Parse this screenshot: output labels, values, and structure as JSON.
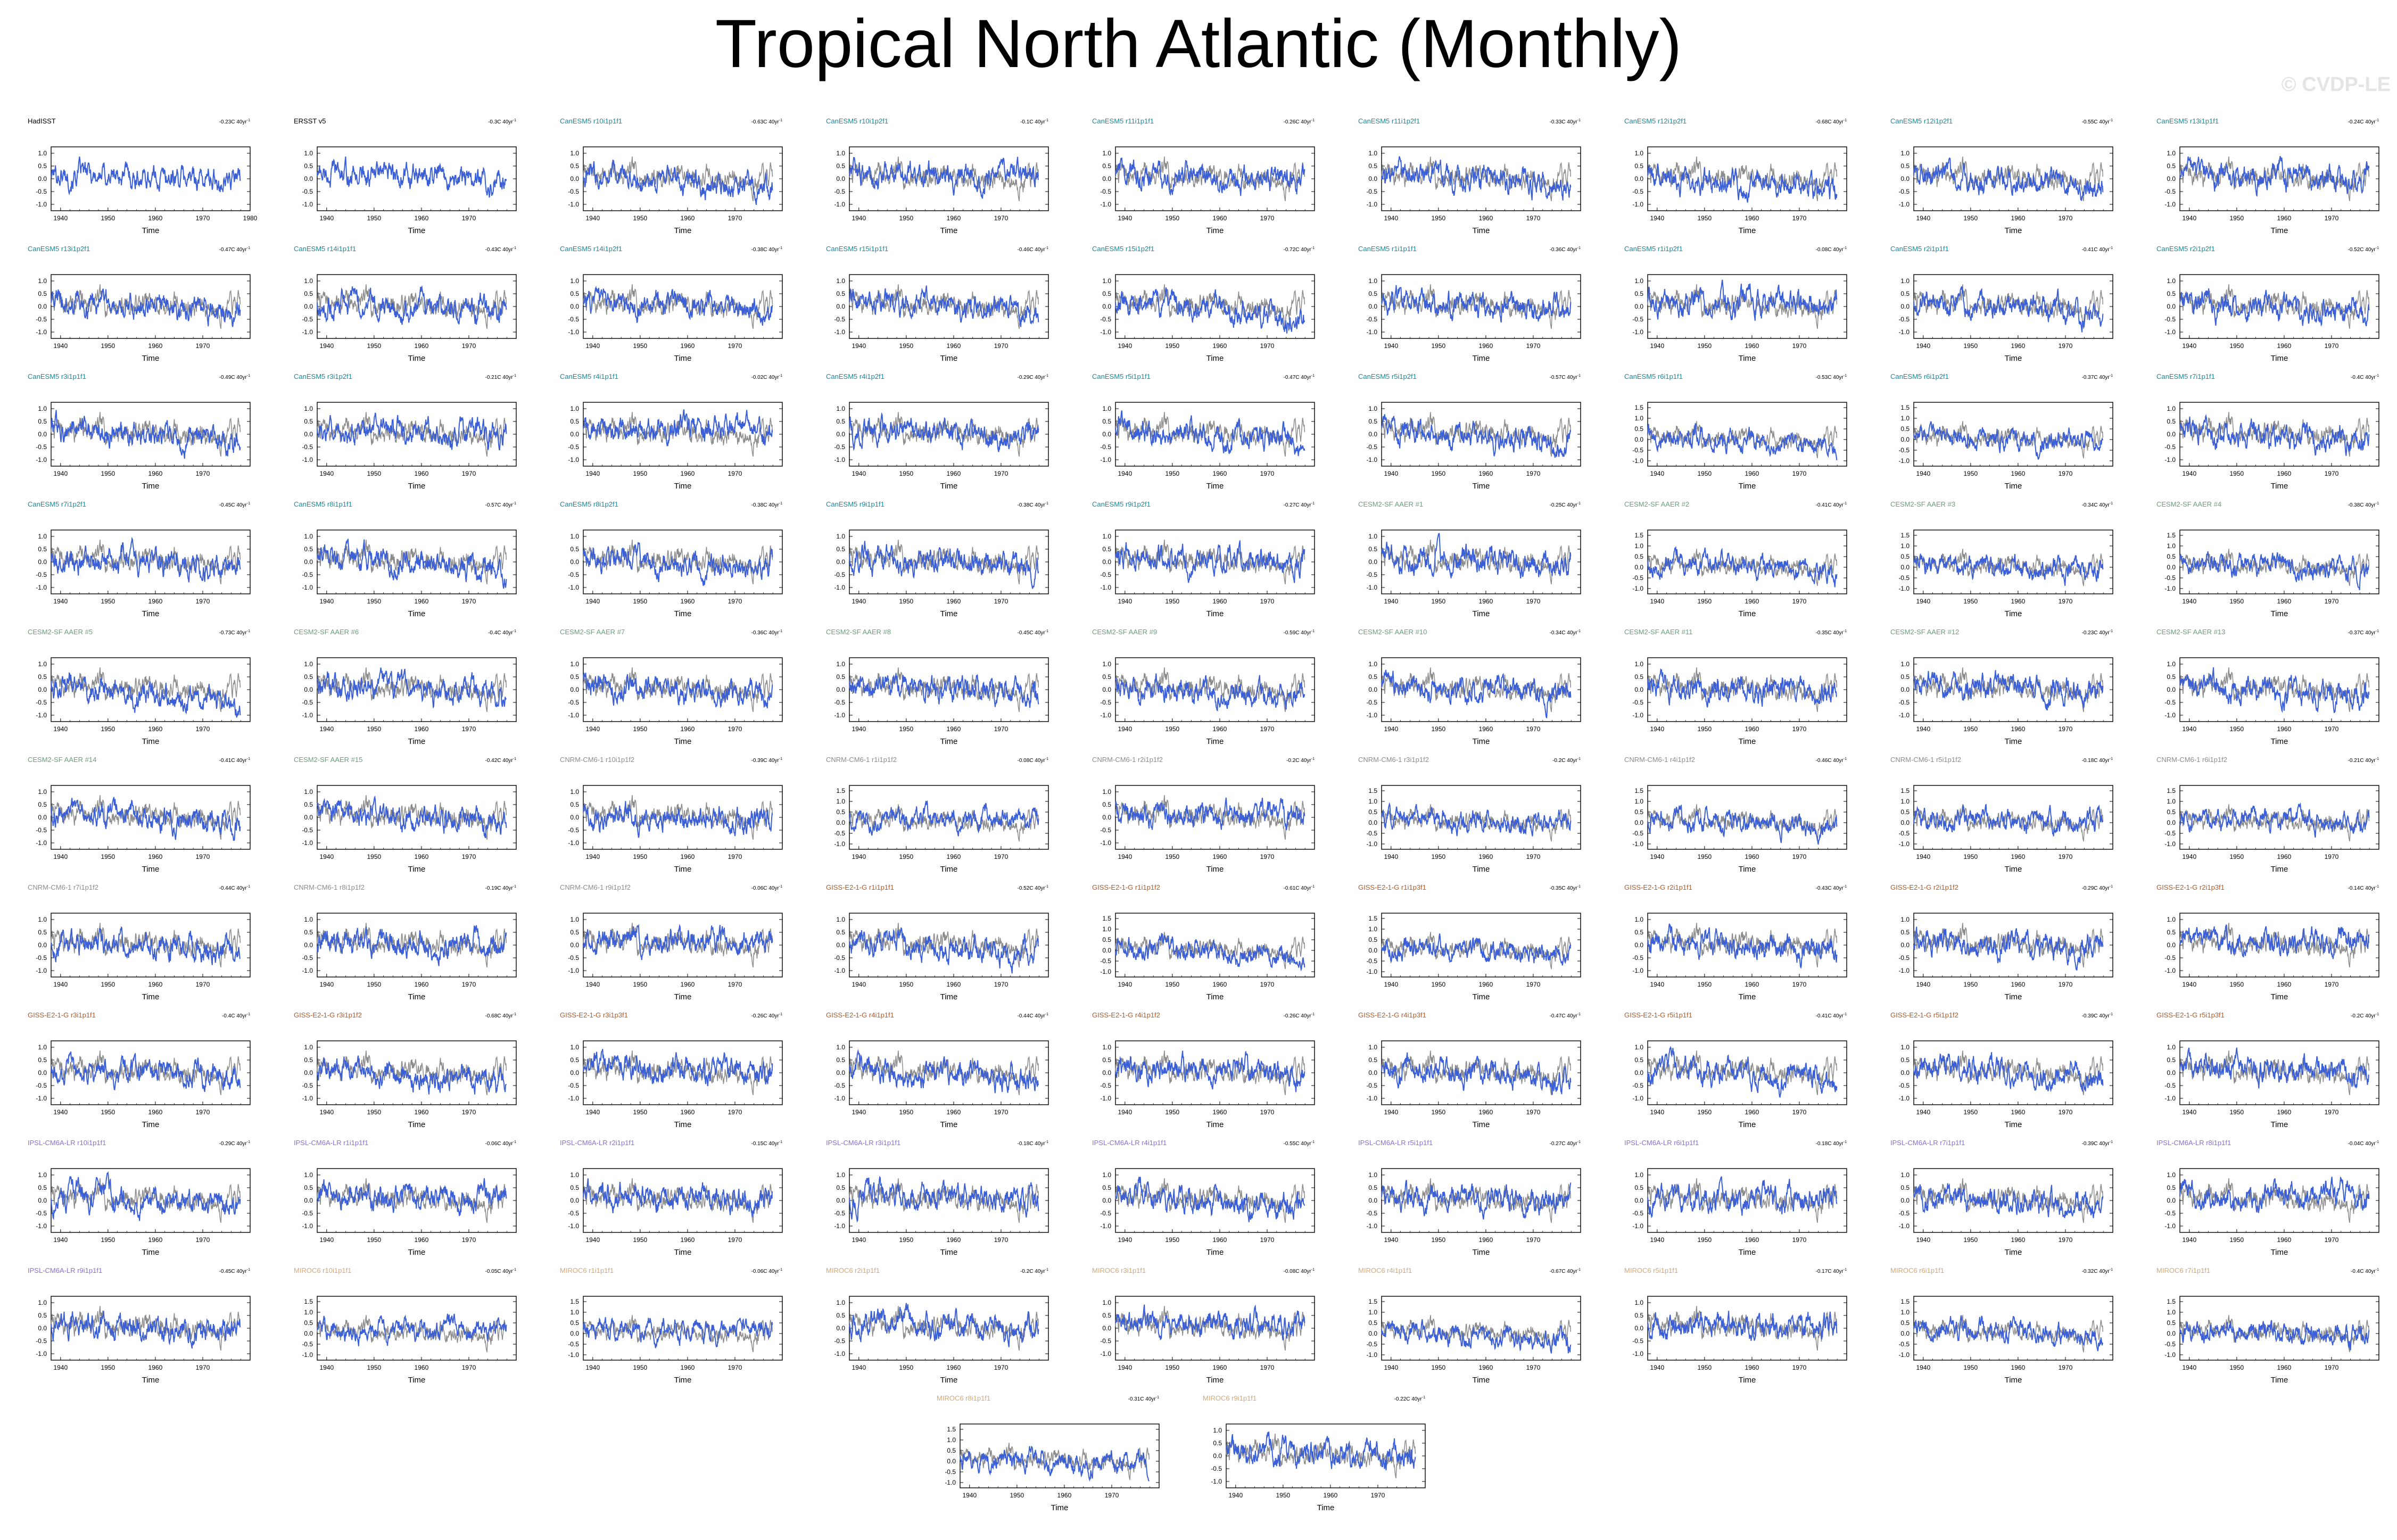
{
  "title": "Tropical North Atlantic (Monthly)",
  "watermark": "© CVDP-LE",
  "colors": {
    "model_line": "#3b5fd6",
    "obs_line": "#8c8c8c",
    "obs_title": "#000000"
  },
  "chart_data": {
    "type": "line",
    "xlabel": "Time",
    "xlim": [
      1938,
      1980
    ],
    "x_ticks": [
      "1940",
      "1950",
      "1960",
      "1970"
    ],
    "y_ticks": [
      "1.0",
      "0.5",
      "0.0",
      "-0.5",
      "-1.0"
    ],
    "y_ticks_tall": [
      "1.5",
      "1.0",
      "0.5",
      "0.0",
      "-0.5",
      "-1.0"
    ],
    "ylim": [
      -1.25,
      1.25
    ],
    "ylim_tall": [
      -1.25,
      1.75
    ],
    "panels": [
      {
        "title": "HadISST",
        "trend": "-0.23C 40yr",
        "group": "obs",
        "extra": "1980"
      },
      {
        "title": "ERSST v5",
        "trend": "-0.3C 40yr",
        "group": "obs"
      },
      {
        "title": "CanESM5 r10i1p1f1",
        "trend": "-0.63C 40yr",
        "group": "canesm"
      },
      {
        "title": "CanESM5 r10i1p2f1",
        "trend": "-0.1C 40yr",
        "group": "canesm"
      },
      {
        "title": "CanESM5 r11i1p1f1",
        "trend": "-0.26C 40yr",
        "group": "canesm"
      },
      {
        "title": "CanESM5 r11i1p2f1",
        "trend": "-0.33C 40yr",
        "group": "canesm"
      },
      {
        "title": "CanESM5 r12i1p2f1",
        "trend": "-0.68C 40yr",
        "group": "canesm"
      },
      {
        "title": "CanESM5 r12i1p2f1",
        "trend": "-0.55C 40yr",
        "group": "canesm"
      },
      {
        "title": "CanESM5 r13i1p1f1",
        "trend": "-0.24C 40yr",
        "group": "canesm"
      },
      {
        "title": "CanESM5 r13i1p2f1",
        "trend": "-0.47C 40yr",
        "group": "canesm"
      },
      {
        "title": "CanESM5 r14i1p1f1",
        "trend": "-0.43C 40yr",
        "group": "canesm"
      },
      {
        "title": "CanESM5 r14i1p2f1",
        "trend": "-0.38C 40yr",
        "group": "canesm"
      },
      {
        "title": "CanESM5 r15i1p1f1",
        "trend": "-0.46C 40yr",
        "group": "canesm"
      },
      {
        "title": "CanESM5 r15i1p2f1",
        "trend": "-0.72C 40yr",
        "group": "canesm"
      },
      {
        "title": "CanESM5 r1i1p1f1",
        "trend": "-0.36C 40yr",
        "group": "canesm"
      },
      {
        "title": "CanESM5 r1i1p2f1",
        "trend": "-0.08C 40yr",
        "group": "canesm"
      },
      {
        "title": "CanESM5 r2i1p1f1",
        "trend": "-0.41C 40yr",
        "group": "canesm"
      },
      {
        "title": "CanESM5 r2i1p2f1",
        "trend": "-0.52C 40yr",
        "group": "canesm"
      },
      {
        "title": "CanESM5 r3i1p1f1",
        "trend": "-0.49C 40yr",
        "group": "canesm"
      },
      {
        "title": "CanESM5 r3i1p2f1",
        "trend": "-0.21C 40yr",
        "group": "canesm"
      },
      {
        "title": "CanESM5 r4i1p1f1",
        "trend": "-0.02C 40yr",
        "group": "canesm"
      },
      {
        "title": "CanESM5 r4i1p2f1",
        "trend": "-0.29C 40yr",
        "group": "canesm"
      },
      {
        "title": "CanESM5 r5i1p1f1",
        "trend": "-0.47C 40yr",
        "group": "canesm"
      },
      {
        "title": "CanESM5 r5i1p2f1",
        "trend": "-0.57C 40yr",
        "group": "canesm"
      },
      {
        "title": "CanESM5 r6i1p1f1",
        "trend": "-0.53C 40yr",
        "group": "canesm",
        "tall": true
      },
      {
        "title": "CanESM5 r6i1p2f1",
        "trend": "-0.37C 40yr",
        "group": "canesm",
        "tall": true
      },
      {
        "title": "CanESM5 r7i1p1f1",
        "trend": "-0.4C 40yr",
        "group": "canesm"
      },
      {
        "title": "CanESM5 r7i1p2f1",
        "trend": "-0.45C 40yr",
        "group": "canesm"
      },
      {
        "title": "CanESM5 r8i1p1f1",
        "trend": "-0.57C 40yr",
        "group": "canesm"
      },
      {
        "title": "CanESM5 r8i1p2f1",
        "trend": "-0.38C 40yr",
        "group": "canesm"
      },
      {
        "title": "CanESM5 r9i1p1f1",
        "trend": "-0.38C 40yr",
        "group": "canesm"
      },
      {
        "title": "CanESM5 r9i1p2f1",
        "trend": "-0.27C 40yr",
        "group": "canesm"
      },
      {
        "title": "CESM2-SF AAER #1",
        "trend": "-0.25C 40yr",
        "group": "cesm"
      },
      {
        "title": "CESM2-SF AAER #2",
        "trend": "-0.41C 40yr",
        "group": "cesm",
        "tall": true
      },
      {
        "title": "CESM2-SF AAER #3",
        "trend": "-0.34C 40yr",
        "group": "cesm",
        "tall": true
      },
      {
        "title": "CESM2-SF AAER #4",
        "trend": "-0.38C 40yr",
        "group": "cesm",
        "tall": true
      },
      {
        "title": "CESM2-SF AAER #5",
        "trend": "-0.73C 40yr",
        "group": "cesm"
      },
      {
        "title": "CESM2-SF AAER #6",
        "trend": "-0.4C 40yr",
        "group": "cesm"
      },
      {
        "title": "CESM2-SF AAER #7",
        "trend": "-0.36C 40yr",
        "group": "cesm"
      },
      {
        "title": "CESM2-SF AAER #8",
        "trend": "-0.45C 40yr",
        "group": "cesm"
      },
      {
        "title": "CESM2-SF AAER #9",
        "trend": "-0.59C 40yr",
        "group": "cesm"
      },
      {
        "title": "CESM2-SF AAER #10",
        "trend": "-0.34C 40yr",
        "group": "cesm"
      },
      {
        "title": "CESM2-SF AAER #11",
        "trend": "-0.35C 40yr",
        "group": "cesm"
      },
      {
        "title": "CESM2-SF AAER #12",
        "trend": "-0.23C 40yr",
        "group": "cesm"
      },
      {
        "title": "CESM2-SF AAER #13",
        "trend": "-0.37C 40yr",
        "group": "cesm"
      },
      {
        "title": "CESM2-SF AAER #14",
        "trend": "-0.41C 40yr",
        "group": "cesm"
      },
      {
        "title": "CESM2-SF AAER #15",
        "trend": "-0.42C 40yr",
        "group": "cesm"
      },
      {
        "title": "CNRM-CM6-1 r10i1p1f2",
        "trend": "-0.39C 40yr",
        "group": "cnrm"
      },
      {
        "title": "CNRM-CM6-1 r1i1p1f2",
        "trend": "-0.08C 40yr",
        "group": "cnrm",
        "tall": true
      },
      {
        "title": "CNRM-CM6-1 r2i1p1f2",
        "trend": "-0.2C 40yr",
        "group": "cnrm"
      },
      {
        "title": "CNRM-CM6-1 r3i1p1f2",
        "trend": "-0.2C 40yr",
        "group": "cnrm",
        "tall": true
      },
      {
        "title": "CNRM-CM6-1 r4i1p1f2",
        "trend": "-0.46C 40yr",
        "group": "cnrm",
        "tall": true
      },
      {
        "title": "CNRM-CM6-1 r5i1p1f2",
        "trend": "-0.18C 40yr",
        "group": "cnrm",
        "tall": true
      },
      {
        "title": "CNRM-CM6-1 r6i1p1f2",
        "trend": "-0.21C 40yr",
        "group": "cnrm",
        "tall": true
      },
      {
        "title": "CNRM-CM6-1 r7i1p1f2",
        "trend": "-0.44C 40yr",
        "group": "cnrm"
      },
      {
        "title": "CNRM-CM6-1 r8i1p1f2",
        "trend": "-0.19C 40yr",
        "group": "cnrm"
      },
      {
        "title": "CNRM-CM6-1 r9i1p1f2",
        "trend": "-0.06C 40yr",
        "group": "cnrm"
      },
      {
        "title": "GISS-E2-1-G r1i1p1f1",
        "trend": "-0.52C 40yr",
        "group": "giss"
      },
      {
        "title": "GISS-E2-1-G r1i1p1f2",
        "trend": "-0.61C 40yr",
        "group": "giss",
        "tall": true
      },
      {
        "title": "GISS-E2-1-G r1i1p3f1",
        "trend": "-0.35C 40yr",
        "group": "giss",
        "tall": true
      },
      {
        "title": "GISS-E2-1-G r2i1p1f1",
        "trend": "-0.43C 40yr",
        "group": "giss"
      },
      {
        "title": "GISS-E2-1-G r2i1p1f2",
        "trend": "-0.29C 40yr",
        "group": "giss"
      },
      {
        "title": "GISS-E2-1-G r2i1p3f1",
        "trend": "-0.14C 40yr",
        "group": "giss"
      },
      {
        "title": "GISS-E2-1-G r3i1p1f1",
        "trend": "-0.4C 40yr",
        "group": "giss"
      },
      {
        "title": "GISS-E2-1-G r3i1p1f2",
        "trend": "-0.68C 40yr",
        "group": "giss"
      },
      {
        "title": "GISS-E2-1-G r3i1p3f1",
        "trend": "-0.26C 40yr",
        "group": "giss"
      },
      {
        "title": "GISS-E2-1-G r4i1p1f1",
        "trend": "-0.44C 40yr",
        "group": "giss"
      },
      {
        "title": "GISS-E2-1-G r4i1p1f2",
        "trend": "-0.26C 40yr",
        "group": "giss"
      },
      {
        "title": "GISS-E2-1-G r4i1p3f1",
        "trend": "-0.47C 40yr",
        "group": "giss"
      },
      {
        "title": "GISS-E2-1-G r5i1p1f1",
        "trend": "-0.41C 40yr",
        "group": "giss"
      },
      {
        "title": "GISS-E2-1-G r5i1p1f2",
        "trend": "-0.39C 40yr",
        "group": "giss"
      },
      {
        "title": "GISS-E2-1-G r5i1p3f1",
        "trend": "-0.2C 40yr",
        "group": "giss"
      },
      {
        "title": "IPSL-CM6A-LR r10i1p1f1",
        "trend": "-0.29C 40yr",
        "group": "ipsl"
      },
      {
        "title": "IPSL-CM6A-LR r1i1p1f1",
        "trend": "-0.06C 40yr",
        "group": "ipsl"
      },
      {
        "title": "IPSL-CM6A-LR r2i1p1f1",
        "trend": "-0.15C 40yr",
        "group": "ipsl"
      },
      {
        "title": "IPSL-CM6A-LR r3i1p1f1",
        "trend": "-0.18C 40yr",
        "group": "ipsl"
      },
      {
        "title": "IPSL-CM6A-LR r4i1p1f1",
        "trend": "-0.55C 40yr",
        "group": "ipsl"
      },
      {
        "title": "IPSL-CM6A-LR r5i1p1f1",
        "trend": "-0.27C 40yr",
        "group": "ipsl"
      },
      {
        "title": "IPSL-CM6A-LR r6i1p1f1",
        "trend": "-0.18C 40yr",
        "group": "ipsl"
      },
      {
        "title": "IPSL-CM6A-LR r7i1p1f1",
        "trend": "-0.39C 40yr",
        "group": "ipsl"
      },
      {
        "title": "IPSL-CM6A-LR r8i1p1f1",
        "trend": "-0.04C 40yr",
        "group": "ipsl"
      },
      {
        "title": "IPSL-CM6A-LR r9i1p1f1",
        "trend": "-0.45C 40yr",
        "group": "ipsl"
      },
      {
        "title": "MIROC6 r10i1p1f1",
        "trend": "-0.05C 40yr",
        "group": "miroc",
        "tall": true
      },
      {
        "title": "MIROC6 r1i1p1f1",
        "trend": "-0.06C 40yr",
        "group": "miroc",
        "tall": true
      },
      {
        "title": "MIROC6 r2i1p1f1",
        "trend": "-0.2C 40yr",
        "group": "miroc"
      },
      {
        "title": "MIROC6 r3i1p1f1",
        "trend": "-0.08C 40yr",
        "group": "miroc"
      },
      {
        "title": "MIROC6 r4i1p1f1",
        "trend": "-0.67C 40yr",
        "group": "miroc",
        "tall": true
      },
      {
        "title": "MIROC6 r5i1p1f1",
        "trend": "-0.17C 40yr",
        "group": "miroc"
      },
      {
        "title": "MIROC6 r6i1p1f1",
        "trend": "-0.32C 40yr",
        "group": "miroc",
        "tall": true
      },
      {
        "title": "MIROC6 r7i1p1f1",
        "trend": "-0.4C 40yr",
        "group": "miroc",
        "tall": true
      },
      {
        "title": "MIROC6 r8i1p1f1",
        "trend": "-0.31C 40yr",
        "group": "miroc",
        "tall": true
      },
      {
        "title": "MIROC6 r9i1p1f1",
        "trend": "-0.22C 40yr",
        "group": "miroc"
      }
    ]
  },
  "group_colors": {
    "obs": "#000000",
    "canesm": "#1a8a9c",
    "cesm": "#6a9e7e",
    "cnrm": "#8c8c8c",
    "giss": "#b05a2a",
    "ipsl": "#8b6fd8",
    "miroc": "#d6a877"
  }
}
